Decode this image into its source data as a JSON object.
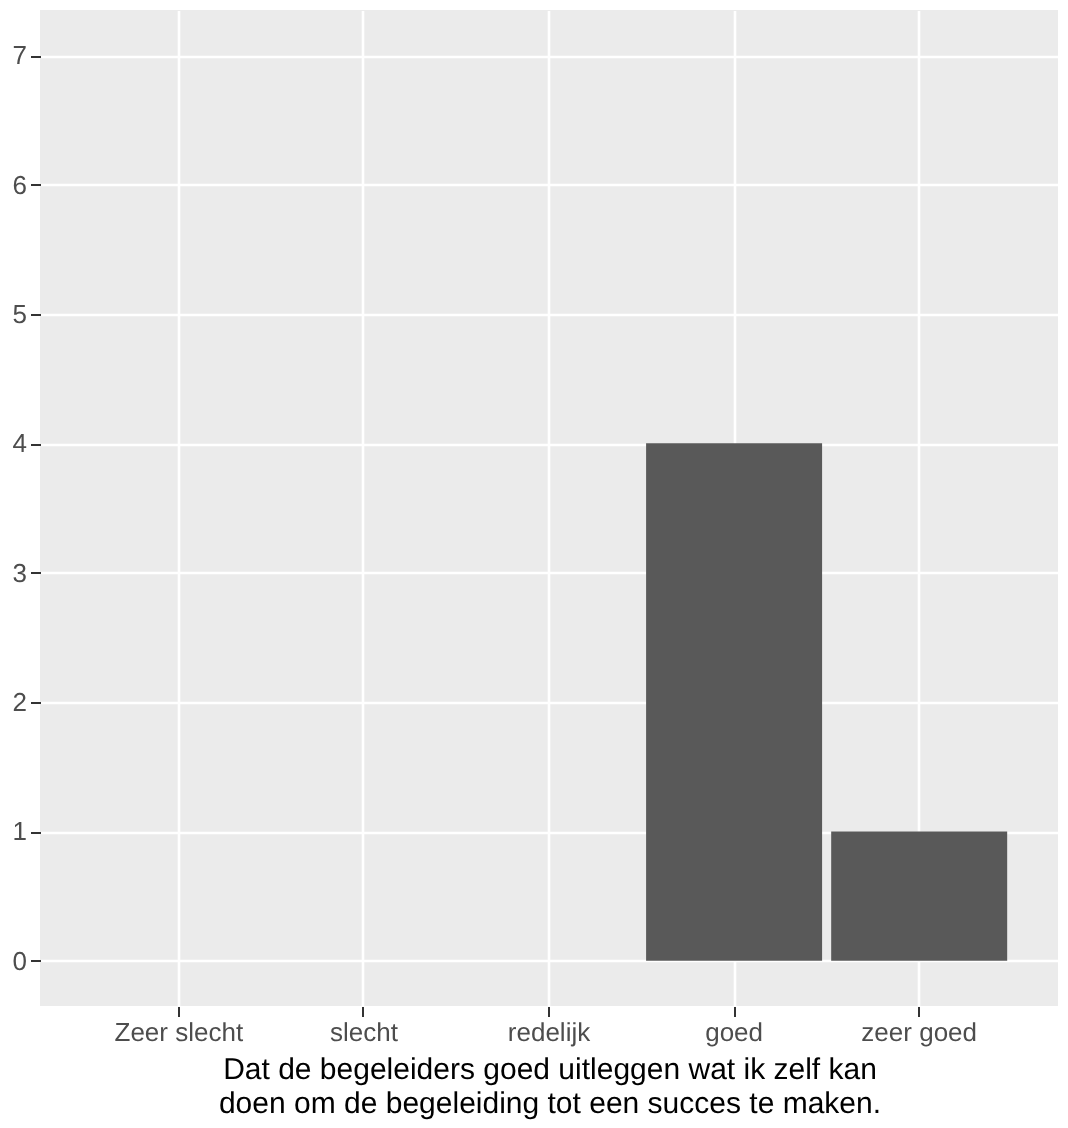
{
  "chart_data": {
    "type": "bar",
    "xlabel": "Dat de begeleiders goed uitleggen wat ik zelf kan\ndoen om de begeleiding tot een succes te maken.",
    "categories": [
      "Zeer slecht",
      "slecht",
      "redelijk",
      "goed",
      "zeer goed"
    ],
    "values": [
      0,
      0,
      0,
      4,
      1
    ],
    "color": "#595959",
    "ylim": [
      -0.35,
      7.35
    ],
    "yticks": [
      0,
      1,
      2,
      3,
      4,
      5,
      6,
      7
    ],
    "grid": true
  }
}
